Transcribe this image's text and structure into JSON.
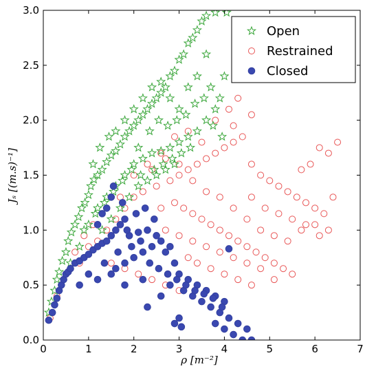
{
  "chart_data": {
    "type": "scatter",
    "xlabel": "ρ [m⁻²]",
    "ylabel": "Jₛ [(m.s)⁻¹]",
    "xlim": [
      0,
      7
    ],
    "ylim": [
      0,
      3
    ],
    "x_ticks": [
      "0",
      "1",
      "2",
      "3",
      "4",
      "5",
      "6",
      "7"
    ],
    "y_ticks": [
      "0.0",
      "0.5",
      "1.0",
      "1.5",
      "2.0",
      "2.5",
      "3.0"
    ],
    "legend_position": "top-right",
    "grid": false,
    "series": [
      {
        "name": "Open",
        "marker": "star",
        "color": "#3aa63a",
        "fill": "none",
        "points": [
          [
            0.12,
            0.25
          ],
          [
            0.18,
            0.35
          ],
          [
            0.25,
            0.45
          ],
          [
            0.3,
            0.55
          ],
          [
            0.35,
            0.62
          ],
          [
            0.42,
            0.72
          ],
          [
            0.5,
            0.8
          ],
          [
            0.55,
            0.9
          ],
          [
            0.62,
            0.98
          ],
          [
            0.7,
            1.05
          ],
          [
            0.78,
            1.12
          ],
          [
            0.85,
            1.2
          ],
          [
            0.92,
            1.25
          ],
          [
            1.0,
            1.32
          ],
          [
            1.05,
            1.4
          ],
          [
            1.12,
            1.46
          ],
          [
            1.2,
            1.5
          ],
          [
            1.3,
            1.55
          ],
          [
            1.4,
            1.62
          ],
          [
            1.5,
            1.68
          ],
          [
            1.6,
            1.72
          ],
          [
            1.7,
            1.78
          ],
          [
            1.8,
            1.85
          ],
          [
            1.9,
            1.9
          ],
          [
            2.0,
            1.95
          ],
          [
            2.1,
            2.0
          ],
          [
            2.2,
            2.05
          ],
          [
            2.3,
            2.1
          ],
          [
            2.4,
            2.15
          ],
          [
            2.5,
            2.2
          ],
          [
            2.6,
            2.25
          ],
          [
            2.7,
            2.3
          ],
          [
            2.8,
            2.4
          ],
          [
            2.9,
            2.45
          ],
          [
            3.0,
            2.55
          ],
          [
            3.1,
            2.6
          ],
          [
            3.2,
            2.7
          ],
          [
            3.3,
            2.75
          ],
          [
            3.4,
            2.82
          ],
          [
            3.5,
            2.9
          ],
          [
            3.6,
            2.95
          ],
          [
            3.8,
            2.98
          ],
          [
            4.05,
            2.98
          ],
          [
            0.6,
            0.7
          ],
          [
            0.8,
            0.85
          ],
          [
            1.0,
            1.05
          ],
          [
            1.2,
            1.2
          ],
          [
            1.4,
            1.3
          ],
          [
            1.6,
            1.4
          ],
          [
            1.8,
            1.5
          ],
          [
            2.0,
            1.6
          ],
          [
            2.2,
            1.65
          ],
          [
            2.4,
            1.7
          ],
          [
            2.6,
            1.72
          ],
          [
            2.8,
            1.75
          ],
          [
            3.0,
            1.8
          ],
          [
            3.2,
            1.85
          ],
          [
            3.4,
            1.9
          ],
          [
            3.6,
            2.0
          ],
          [
            3.8,
            2.1
          ],
          [
            1.3,
            1.0
          ],
          [
            1.5,
            1.1
          ],
          [
            1.7,
            1.2
          ],
          [
            1.9,
            1.3
          ],
          [
            2.1,
            1.4
          ],
          [
            2.3,
            1.45
          ],
          [
            2.5,
            1.5
          ],
          [
            2.7,
            1.55
          ],
          [
            2.9,
            1.6
          ],
          [
            1.6,
            1.9
          ],
          [
            1.8,
            2.0
          ],
          [
            2.0,
            2.1
          ],
          [
            2.2,
            2.2
          ],
          [
            2.4,
            2.3
          ],
          [
            2.6,
            2.35
          ],
          [
            2.8,
            2.2
          ],
          [
            3.0,
            2.1
          ],
          [
            3.2,
            2.3
          ],
          [
            3.4,
            2.4
          ],
          [
            3.6,
            2.6
          ],
          [
            3.7,
            2.3
          ],
          [
            3.9,
            2.2
          ],
          [
            4.0,
            2.4
          ],
          [
            1.1,
            1.6
          ],
          [
            1.25,
            1.75
          ],
          [
            1.45,
            1.85
          ],
          [
            2.1,
            1.75
          ],
          [
            2.35,
            1.9
          ],
          [
            2.55,
            2.0
          ],
          [
            2.75,
            1.95
          ],
          [
            2.95,
            2.0
          ],
          [
            3.15,
            2.05
          ],
          [
            3.35,
            2.15
          ],
          [
            3.55,
            2.2
          ],
          [
            3.75,
            1.95
          ],
          [
            3.95,
            1.85
          ],
          [
            0.9,
            1.0
          ],
          [
            1.15,
            1.15
          ],
          [
            1.35,
            1.25
          ],
          [
            1.55,
            1.35
          ],
          [
            1.75,
            1.45
          ],
          [
            1.95,
            1.55
          ],
          [
            2.15,
            1.5
          ],
          [
            2.45,
            1.55
          ],
          [
            2.65,
            1.6
          ],
          [
            2.85,
            1.65
          ],
          [
            3.05,
            1.7
          ],
          [
            3.25,
            1.75
          ]
        ]
      },
      {
        "name": "Restrained",
        "marker": "circle",
        "color": "#e85555",
        "fill": "none",
        "points": [
          [
            0.15,
            0.2
          ],
          [
            0.3,
            0.4
          ],
          [
            0.5,
            0.6
          ],
          [
            0.8,
            0.7
          ],
          [
            1.0,
            0.85
          ],
          [
            1.2,
            0.9
          ],
          [
            1.4,
            1.0
          ],
          [
            1.6,
            1.1
          ],
          [
            1.8,
            1.2
          ],
          [
            2.0,
            1.3
          ],
          [
            2.2,
            1.35
          ],
          [
            2.5,
            1.4
          ],
          [
            2.8,
            1.45
          ],
          [
            3.0,
            1.5
          ],
          [
            3.2,
            1.55
          ],
          [
            3.4,
            1.6
          ],
          [
            3.6,
            1.65
          ],
          [
            3.8,
            1.7
          ],
          [
            4.0,
            1.75
          ],
          [
            4.2,
            1.8
          ],
          [
            4.4,
            1.85
          ],
          [
            4.6,
            1.6
          ],
          [
            4.8,
            1.5
          ],
          [
            5.0,
            1.45
          ],
          [
            5.2,
            1.4
          ],
          [
            5.4,
            1.35
          ],
          [
            5.6,
            1.3
          ],
          [
            5.8,
            1.25
          ],
          [
            6.0,
            1.2
          ],
          [
            6.2,
            1.15
          ],
          [
            6.4,
            1.3
          ],
          [
            6.5,
            1.8
          ],
          [
            6.3,
            1.7
          ],
          [
            6.1,
            1.75
          ],
          [
            5.9,
            1.6
          ],
          [
            5.7,
            1.55
          ],
          [
            2.6,
            1.2
          ],
          [
            2.9,
            1.25
          ],
          [
            3.1,
            1.2
          ],
          [
            3.3,
            1.15
          ],
          [
            3.5,
            1.1
          ],
          [
            3.7,
            1.05
          ],
          [
            3.9,
            1.0
          ],
          [
            4.1,
            0.95
          ],
          [
            4.3,
            0.9
          ],
          [
            4.5,
            0.85
          ],
          [
            4.7,
            0.8
          ],
          [
            4.9,
            0.75
          ],
          [
            5.1,
            0.7
          ],
          [
            5.3,
            0.65
          ],
          [
            5.5,
            0.6
          ],
          [
            2.7,
            1.0
          ],
          [
            3.0,
            0.95
          ],
          [
            3.3,
            0.9
          ],
          [
            3.6,
            0.85
          ],
          [
            3.9,
            0.8
          ],
          [
            4.2,
            0.75
          ],
          [
            4.5,
            0.7
          ],
          [
            4.8,
            0.65
          ],
          [
            5.1,
            0.55
          ],
          [
            2.4,
            1.55
          ],
          [
            2.7,
            1.65
          ],
          [
            3.0,
            1.6
          ],
          [
            3.3,
            1.45
          ],
          [
            3.6,
            1.35
          ],
          [
            3.9,
            1.3
          ],
          [
            4.2,
            1.2
          ],
          [
            4.5,
            1.1
          ],
          [
            4.8,
            1.0
          ],
          [
            5.1,
            0.95
          ],
          [
            5.4,
            0.9
          ],
          [
            5.7,
            1.0
          ],
          [
            6.0,
            1.05
          ],
          [
            3.8,
            2.0
          ],
          [
            4.1,
            2.1
          ],
          [
            4.3,
            2.2
          ],
          [
            4.6,
            2.05
          ],
          [
            4.2,
            1.95
          ],
          [
            3.5,
            1.8
          ],
          [
            3.2,
            1.9
          ],
          [
            2.9,
            1.85
          ],
          [
            2.6,
            1.7
          ],
          [
            2.3,
            1.6
          ],
          [
            2.0,
            1.5
          ],
          [
            1.7,
            1.3
          ],
          [
            1.4,
            1.2
          ],
          [
            1.1,
            1.05
          ],
          [
            0.9,
            0.95
          ],
          [
            0.7,
            0.8
          ],
          [
            4.6,
            1.3
          ],
          [
            4.9,
            1.2
          ],
          [
            5.2,
            1.15
          ],
          [
            5.5,
            1.1
          ],
          [
            5.8,
            1.05
          ],
          [
            6.1,
            0.95
          ],
          [
            6.3,
            1.0
          ],
          [
            3.4,
            0.7
          ],
          [
            3.7,
            0.65
          ],
          [
            4.0,
            0.6
          ],
          [
            4.3,
            0.55
          ],
          [
            4.6,
            0.5
          ],
          [
            3.2,
            0.75
          ],
          [
            1.5,
            0.7
          ],
          [
            1.8,
            0.65
          ],
          [
            2.1,
            0.6
          ],
          [
            2.4,
            0.55
          ],
          [
            2.7,
            0.5
          ],
          [
            3.0,
            0.45
          ]
        ]
      },
      {
        "name": "Closed",
        "marker": "circle",
        "color": "#3340a0",
        "fill": "#3a48b0",
        "points": [
          [
            0.12,
            0.18
          ],
          [
            0.2,
            0.25
          ],
          [
            0.25,
            0.32
          ],
          [
            0.3,
            0.38
          ],
          [
            0.35,
            0.45
          ],
          [
            0.4,
            0.5
          ],
          [
            0.45,
            0.55
          ],
          [
            0.5,
            0.6
          ],
          [
            0.55,
            0.62
          ],
          [
            0.6,
            0.65
          ],
          [
            0.7,
            0.7
          ],
          [
            0.8,
            0.72
          ],
          [
            0.9,
            0.75
          ],
          [
            1.0,
            0.78
          ],
          [
            1.1,
            0.82
          ],
          [
            1.2,
            0.85
          ],
          [
            1.3,
            0.88
          ],
          [
            1.4,
            0.9
          ],
          [
            1.5,
            0.95
          ],
          [
            1.6,
            1.0
          ],
          [
            1.7,
            1.05
          ],
          [
            1.8,
            1.1
          ],
          [
            1.4,
            1.2
          ],
          [
            1.5,
            1.3
          ],
          [
            1.55,
            1.4
          ],
          [
            1.3,
            1.15
          ],
          [
            1.2,
            1.05
          ],
          [
            1.35,
            0.7
          ],
          [
            1.5,
            0.6
          ],
          [
            1.6,
            0.65
          ],
          [
            1.8,
            0.7
          ],
          [
            2.0,
            0.75
          ],
          [
            2.2,
            0.8
          ],
          [
            2.4,
            0.85
          ],
          [
            2.6,
            0.9
          ],
          [
            2.8,
            0.85
          ],
          [
            1.9,
            0.95
          ],
          [
            2.1,
            0.98
          ],
          [
            2.3,
            1.0
          ],
          [
            2.5,
            0.95
          ],
          [
            2.7,
            0.8
          ],
          [
            2.9,
            0.7
          ],
          [
            3.0,
            0.6
          ],
          [
            3.2,
            0.55
          ],
          [
            3.4,
            0.5
          ],
          [
            3.6,
            0.45
          ],
          [
            3.8,
            0.4
          ],
          [
            4.0,
            0.35
          ],
          [
            3.1,
            0.45
          ],
          [
            3.3,
            0.4
          ],
          [
            3.5,
            0.35
          ],
          [
            3.7,
            0.3
          ],
          [
            3.9,
            0.25
          ],
          [
            4.1,
            0.2
          ],
          [
            4.3,
            0.15
          ],
          [
            4.5,
            0.1
          ],
          [
            4.2,
            0.05
          ],
          [
            4.4,
            0.0
          ],
          [
            4.6,
            0.0
          ],
          [
            4.0,
            0.1
          ],
          [
            3.8,
            0.15
          ],
          [
            3.0,
            0.2
          ],
          [
            2.9,
            0.15
          ],
          [
            3.05,
            0.12
          ],
          [
            2.3,
            0.3
          ],
          [
            2.6,
            0.4
          ],
          [
            2.8,
            0.5
          ],
          [
            2.2,
            0.55
          ],
          [
            1.8,
            0.5
          ],
          [
            1.2,
            0.55
          ],
          [
            1.0,
            0.6
          ],
          [
            0.8,
            0.5
          ],
          [
            1.65,
            0.8
          ],
          [
            1.95,
            0.85
          ],
          [
            2.15,
            0.9
          ],
          [
            2.35,
            0.7
          ],
          [
            2.55,
            0.65
          ],
          [
            2.75,
            0.6
          ],
          [
            2.95,
            0.55
          ],
          [
            3.15,
            0.5
          ],
          [
            3.35,
            0.45
          ],
          [
            3.55,
            0.42
          ],
          [
            3.75,
            0.38
          ],
          [
            3.95,
            0.3
          ],
          [
            4.1,
            0.83
          ],
          [
            2.05,
            1.15
          ],
          [
            2.25,
            1.2
          ],
          [
            2.45,
            1.1
          ],
          [
            1.75,
            1.25
          ],
          [
            1.85,
            1.0
          ]
        ]
      }
    ]
  }
}
